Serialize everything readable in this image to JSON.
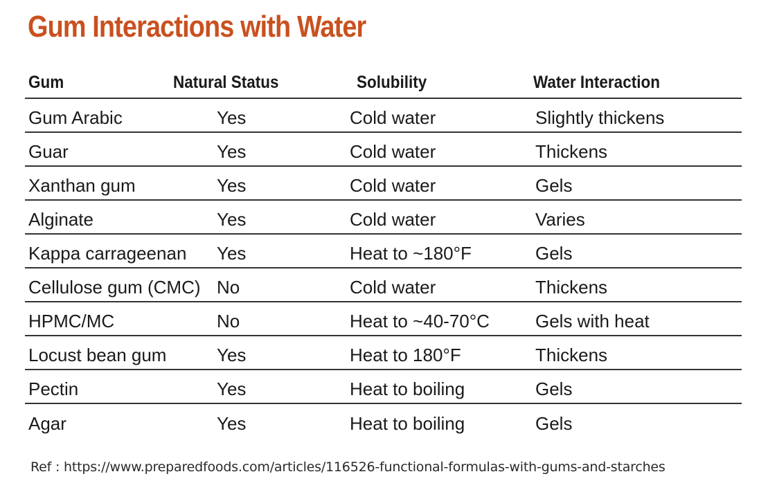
{
  "title": "Gum Interactions with Water",
  "table": {
    "headers": [
      "Gum",
      "Natural Status",
      "Solubility",
      "Water Interaction"
    ],
    "rows": [
      [
        "Gum Arabic",
        "Yes",
        "Cold water",
        "Slightly thickens"
      ],
      [
        "Guar",
        "Yes",
        "Cold water",
        "Thickens"
      ],
      [
        "Xanthan gum",
        "Yes",
        "Cold water",
        "Gels"
      ],
      [
        "Alginate",
        "Yes",
        "Cold water",
        "Varies"
      ],
      [
        "Kappa carrageenan",
        "Yes",
        "Heat to ~180°F",
        "Gels"
      ],
      [
        "Cellulose gum (CMC)",
        "No",
        "Cold water",
        "Thickens"
      ],
      [
        "HPMC/MC",
        "No",
        "Heat to ~40-70°C",
        "Gels with heat"
      ],
      [
        "Locust bean gum",
        "Yes",
        "Heat to 180°F",
        "Thickens"
      ],
      [
        "Pectin",
        "Yes",
        "Heat to boiling",
        "Gels"
      ],
      [
        "Agar",
        "Yes",
        "Heat to boiling",
        "Gels"
      ]
    ]
  },
  "reference": "Ref : https://www.preparedfoods.com/articles/116526-functional-formulas-with-gums-and-starches",
  "colors": {
    "title": "#c9511f",
    "text": "#1a1a1a",
    "rule": "#333333"
  }
}
